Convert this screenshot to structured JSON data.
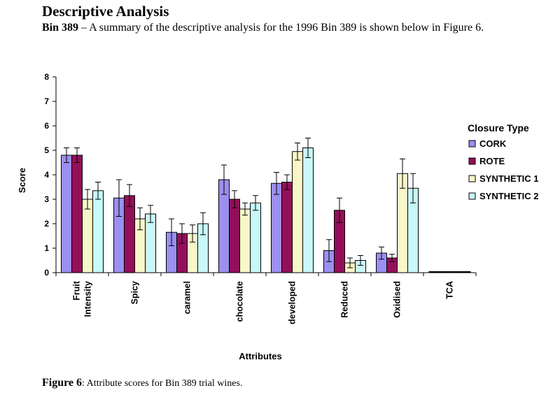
{
  "document": {
    "heading": "Descriptive Analysis",
    "intro_bold": "Bin 389",
    "intro_text": " – A summary of the descriptive analysis for the 1996 Bin 389 is shown below in Figure 6.",
    "caption_bold": "Figure 6",
    "caption_text": ": Attribute scores for Bin 389 trial wines."
  },
  "chart_data": {
    "type": "bar",
    "xlabel": "Attributes",
    "ylabel": "Score",
    "ylim": [
      0,
      8
    ],
    "yticks": [
      0,
      1,
      2,
      3,
      4,
      5,
      6,
      7,
      8
    ],
    "grid": false,
    "legend_title": "Closure Type",
    "legend_position": "right",
    "categories": [
      [
        "Fruit",
        "Intensity"
      ],
      [
        "Spicy"
      ],
      [
        "caramel"
      ],
      [
        "chocolate"
      ],
      [
        "developed"
      ],
      [
        "Reduced"
      ],
      [
        "Oxidised"
      ],
      [
        "TCA"
      ]
    ],
    "series": [
      {
        "name": "CORK",
        "color": "#9b8ff0",
        "values": [
          4.8,
          3.05,
          1.65,
          3.8,
          3.65,
          0.9,
          0.8,
          0
        ],
        "errors": [
          0.3,
          0.75,
          0.55,
          0.6,
          0.45,
          0.45,
          0.25,
          0
        ]
      },
      {
        "name": "ROTE",
        "color": "#930f5a",
        "values": [
          4.8,
          3.15,
          1.6,
          3.0,
          3.7,
          2.55,
          0.6,
          0
        ],
        "errors": [
          0.3,
          0.45,
          0.4,
          0.35,
          0.3,
          0.5,
          0.15,
          0
        ]
      },
      {
        "name": "SYNTHETIC 1",
        "color": "#f9f7c8",
        "values": [
          3.0,
          2.2,
          1.6,
          2.6,
          4.95,
          0.4,
          4.05,
          0
        ],
        "errors": [
          0.4,
          0.45,
          0.35,
          0.25,
          0.35,
          0.2,
          0.6,
          0
        ]
      },
      {
        "name": "SYNTHETIC 2",
        "color": "#c8f8f8",
        "values": [
          3.35,
          2.4,
          2.0,
          2.85,
          5.1,
          0.5,
          3.45,
          0
        ],
        "errors": [
          0.35,
          0.35,
          0.45,
          0.3,
          0.4,
          0.2,
          0.6,
          0
        ]
      }
    ]
  }
}
